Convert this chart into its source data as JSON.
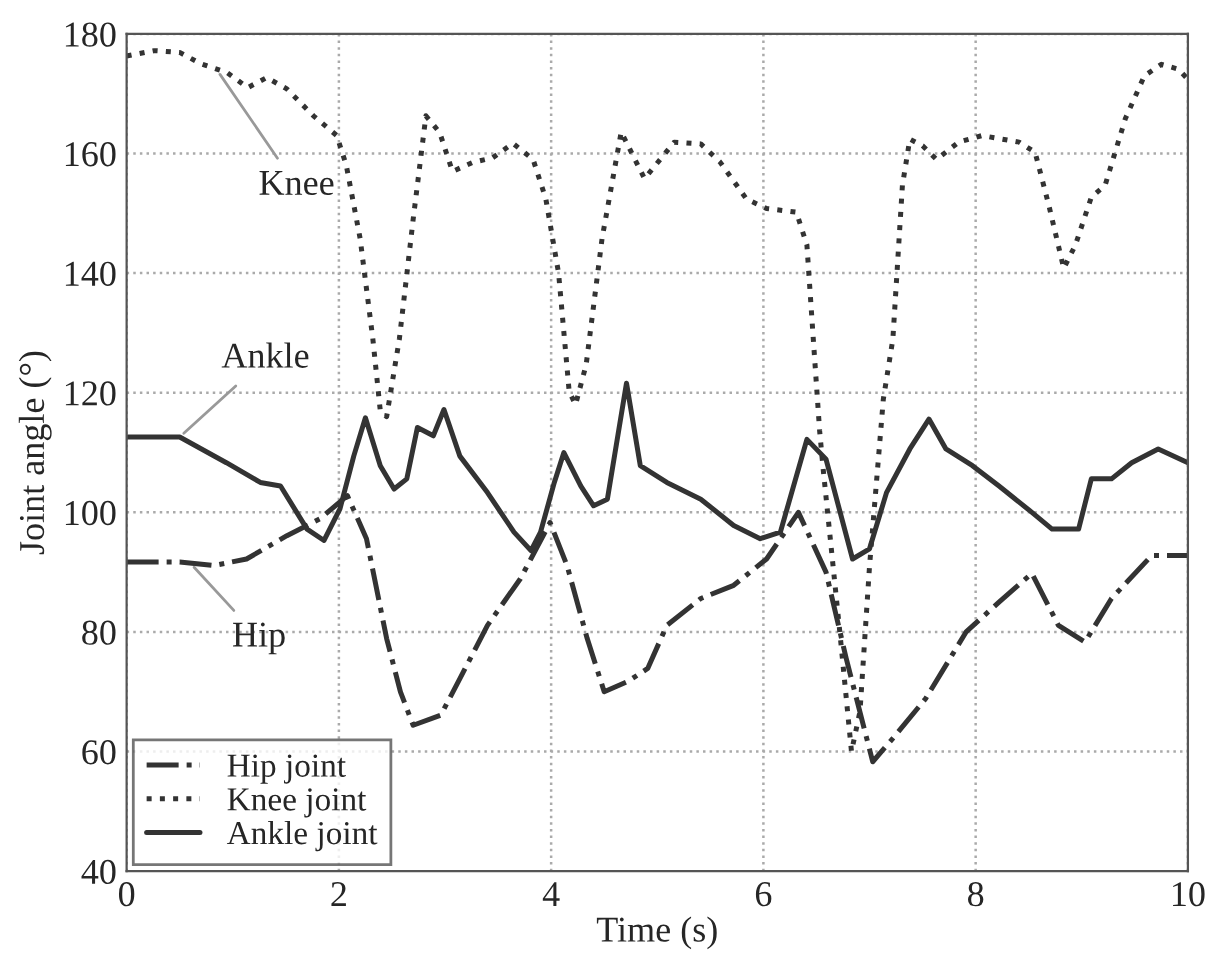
{
  "chart_data": {
    "type": "line",
    "xlabel": "Time (s)",
    "ylabel": "Joint angle (°)",
    "xlim": [
      0,
      10
    ],
    "ylim": [
      40,
      180
    ],
    "xticks": [
      0,
      2,
      4,
      6,
      8,
      10
    ],
    "yticks": [
      40,
      60,
      80,
      100,
      120,
      140,
      160,
      180
    ],
    "grid": true,
    "legend": "bottom left",
    "series": [
      {
        "name": "Hip joint",
        "color": "#333333",
        "line_style": "dashdot",
        "x": [
          0,
          0.5,
          0.82,
          1.13,
          1.51,
          1.82,
          2.08,
          2.26,
          2.45,
          2.58,
          2.7,
          2.96,
          3.14,
          3.4,
          3.71,
          3.99,
          4.15,
          4.34,
          4.5,
          4.72,
          4.91,
          5.09,
          5.41,
          5.72,
          6.03,
          6.33,
          6.59,
          6.78,
          7.03,
          7.22,
          7.53,
          7.91,
          8.22,
          8.53,
          8.78,
          9.03,
          9.28,
          9.66,
          10
        ],
        "values": [
          91.7,
          91.7,
          91.1,
          92.2,
          96.1,
          98.9,
          102.8,
          95.6,
          78.9,
          70,
          64.4,
          66.1,
          72.2,
          81.1,
          88.9,
          98.3,
          91.1,
          78.9,
          70,
          71.7,
          73.9,
          81.1,
          85.6,
          87.8,
          92.2,
          100,
          90,
          75.6,
          58.3,
          62.2,
          68.9,
          80,
          85,
          89.8,
          81.1,
          78.3,
          85.6,
          92.8,
          92.8
        ]
      },
      {
        "name": "Knee joint",
        "color": "#333333",
        "line_style": "dotted",
        "x": [
          0,
          0.26,
          0.5,
          0.7,
          0.95,
          1.14,
          1.32,
          1.51,
          1.76,
          1.98,
          2.07,
          2.2,
          2.32,
          2.39,
          2.45,
          2.57,
          2.7,
          2.82,
          2.95,
          3.07,
          3.26,
          3.45,
          3.64,
          3.83,
          3.95,
          4.07,
          4.17,
          4.23,
          4.33,
          4.48,
          4.66,
          4.88,
          5.16,
          5.41,
          5.59,
          5.84,
          6.03,
          6.31,
          6.41,
          6.47,
          6.53,
          6.56,
          6.72,
          6.83,
          6.91,
          7.0,
          7.13,
          7.22,
          7.31,
          7.38,
          7.5,
          7.63,
          7.84,
          8.06,
          8.41,
          8.56,
          8.69,
          8.83,
          8.94,
          9.09,
          9.22,
          9.41,
          9.59,
          9.75,
          9.91,
          10
        ],
        "values": [
          176.3,
          177.2,
          176.9,
          175,
          173.5,
          171,
          172.7,
          170.8,
          166.3,
          163,
          158,
          145.8,
          129,
          117,
          116,
          129,
          149,
          166.3,
          163.5,
          157,
          158.5,
          159.3,
          161.7,
          159,
          152.4,
          140,
          120.2,
          118,
          124.7,
          145.8,
          163.6,
          155.8,
          161.9,
          161.6,
          158.6,
          152.4,
          150.8,
          150.2,
          144.7,
          129,
          113.6,
          107.8,
          80,
          60,
          66.7,
          91,
          118.9,
          129,
          154.7,
          162.4,
          161.3,
          159,
          161.9,
          163,
          161.9,
          160.2,
          151.3,
          140.8,
          144.7,
          152.7,
          154.7,
          165.8,
          173,
          174.9,
          174.1,
          172.4
        ]
      },
      {
        "name": "Ankle joint",
        "color": "#333333",
        "line_style": "solid",
        "x": [
          0,
          0.5,
          0.94,
          1.26,
          1.45,
          1.7,
          1.86,
          2.01,
          2.14,
          2.25,
          2.39,
          2.52,
          2.64,
          2.74,
          2.89,
          2.99,
          3.14,
          3.4,
          3.65,
          3.81,
          3.9,
          4.03,
          4.12,
          4.28,
          4.4,
          4.53,
          4.71,
          4.84,
          5.09,
          5.41,
          5.72,
          5.97,
          6.16,
          6.41,
          6.59,
          6.84,
          7.0,
          7.16,
          7.38,
          7.56,
          7.72,
          7.97,
          8.22,
          8.53,
          8.72,
          8.97,
          9.09,
          9.28,
          9.47,
          9.72,
          10
        ],
        "values": [
          112.6,
          112.6,
          108.3,
          105,
          104.4,
          97.2,
          95.3,
          100.6,
          109.4,
          115.8,
          107.8,
          103.9,
          105.6,
          114.2,
          112.8,
          117.2,
          109.4,
          103.3,
          96.7,
          93.6,
          96.7,
          105,
          110,
          104.4,
          101.1,
          102.2,
          121.6,
          107.8,
          105,
          102.2,
          97.8,
          95.6,
          96.7,
          112.2,
          108.9,
          92.2,
          93.9,
          103.3,
          110.6,
          115.6,
          110.6,
          107.8,
          104.4,
          100,
          97.2,
          97.2,
          105.6,
          105.6,
          108.3,
          110.6,
          108.3
        ]
      }
    ],
    "annotations": [
      {
        "text": "Knee",
        "x": 0.85,
        "y": 174
      },
      {
        "text": "Ankle",
        "x": 0.5,
        "y": 112.6
      },
      {
        "text": "Hip",
        "x": 0.6,
        "y": 91.5
      }
    ]
  }
}
